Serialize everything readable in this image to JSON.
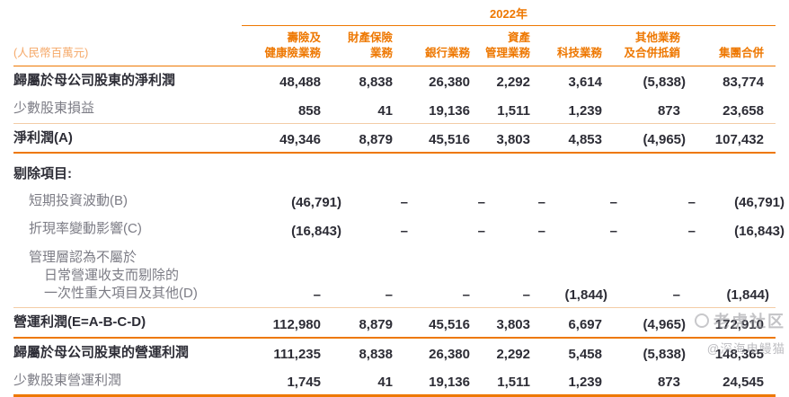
{
  "meta": {
    "year_header": "2022年",
    "unit_label": "(人民幣百萬元)"
  },
  "columns": [
    {
      "lines": [
        "壽險及",
        "健康險業務"
      ]
    },
    {
      "lines": [
        "財產保險",
        "業務"
      ]
    },
    {
      "lines": [
        "銀行業務"
      ]
    },
    {
      "lines": [
        "資產",
        "管理業務"
      ]
    },
    {
      "lines": [
        "科技業務"
      ]
    },
    {
      "lines": [
        "其他業務",
        "及合併抵銷"
      ]
    },
    {
      "lines": [
        "集團合併"
      ]
    }
  ],
  "rows": [
    {
      "label": "歸屬於母公司股東的淨利潤",
      "style": "bold",
      "indent": 0,
      "values": [
        "48,488",
        "8,838",
        "26,380",
        "2,292",
        "3,614",
        "(5,838)",
        "83,774"
      ],
      "rule_below": "none"
    },
    {
      "label": "少數股東損益",
      "style": "gray",
      "indent": 0,
      "values": [
        "858",
        "41",
        "19,136",
        "1,511",
        "1,239",
        "873",
        "23,658"
      ],
      "rule_below": "light"
    },
    {
      "label": "淨利潤(A)",
      "style": "bold",
      "indent": 0,
      "values": [
        "49,346",
        "8,879",
        "45,516",
        "3,803",
        "4,853",
        "(4,965)",
        "107,432"
      ],
      "rule_below": "medium"
    },
    {
      "label": "剔除項目:",
      "style": "bold section",
      "indent": 0,
      "values": [],
      "rule_below": "none"
    },
    {
      "label": "短期投資波動(B)",
      "style": "gray",
      "indent": 1,
      "values": [
        "(46,791)",
        "–",
        "–",
        "–",
        "–",
        "–",
        "(46,791)"
      ],
      "rule_below": "none"
    },
    {
      "label": "折現率變動影響(C)",
      "style": "gray",
      "indent": 1,
      "values": [
        "(16,843)",
        "–",
        "–",
        "–",
        "–",
        "–",
        "(16,843)"
      ],
      "rule_below": "none"
    },
    {
      "label_lines": [
        {
          "text": "管理層認為不屬於",
          "indent": 1
        },
        {
          "text": "日常營運收支而剔除的",
          "indent": 2
        },
        {
          "text": "一次性重大項目及其他(D)",
          "indent": 2
        }
      ],
      "style": "gray",
      "indent": 0,
      "values": [
        "–",
        "–",
        "–",
        "–",
        "(1,844)",
        "–",
        "(1,844)"
      ],
      "rule_below": "light"
    },
    {
      "label": "營運利潤(E=A-B-C-D)",
      "style": "bold",
      "indent": 0,
      "values": [
        "112,980",
        "8,879",
        "45,516",
        "3,803",
        "6,697",
        "(4,965)",
        "172,910"
      ],
      "rule_below": "medium"
    },
    {
      "label": "歸屬於母公司股東的營運利潤",
      "style": "bold",
      "indent": 0,
      "values": [
        "111,235",
        "8,838",
        "26,380",
        "2,292",
        "5,458",
        "(5,838)",
        "148,365"
      ],
      "rule_below": "none"
    },
    {
      "label": "少數股東營運利潤",
      "style": "gray",
      "indent": 0,
      "values": [
        "1,745",
        "41",
        "19,136",
        "1,511",
        "1,239",
        "873",
        "24,545"
      ],
      "rule_below": "strong"
    }
  ],
  "watermark": {
    "brand": "老虎社区",
    "user": "@深海电鳗猫"
  },
  "colors": {
    "accent_orange": "#EE7802",
    "light_orange_text": "#F5A868",
    "light_rule": "#F3CCA6",
    "dark_text": "#2D2D36",
    "gray_text": "#7C7C85"
  }
}
